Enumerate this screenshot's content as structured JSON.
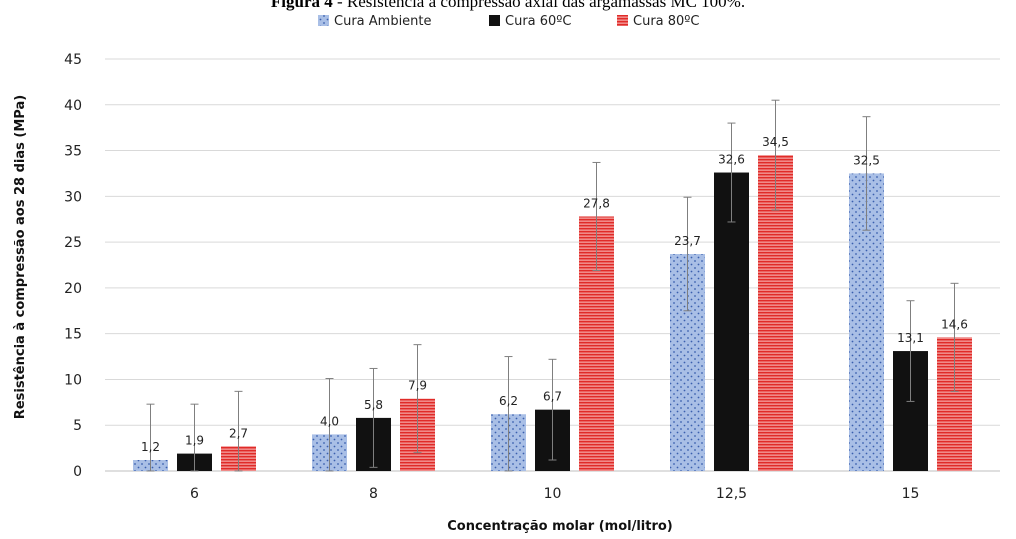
{
  "chart_data": {
    "type": "bar",
    "title_bold": "Figura 4",
    "title_rest": " - Resistência à compressão axial das argamassas MC 100%.",
    "xlabel": "Concentração molar (mol/litro)",
    "ylabel": "Resistência à compressão aos 28 dias (MPa)",
    "ylim": [
      0,
      45
    ],
    "yticks": [
      "0",
      "5",
      "10",
      "15",
      "20",
      "25",
      "30",
      "35",
      "40",
      "45"
    ],
    "categories": [
      "6",
      "8",
      "10",
      "12,5",
      "15"
    ],
    "legend_position": "top",
    "series": [
      {
        "name": "Cura Ambiente",
        "color": "#4a72c4",
        "pattern": "dots",
        "values": [
          1.2,
          4.0,
          6.2,
          23.7,
          32.5
        ],
        "labels": [
          "1,2",
          "4,0",
          "6,2",
          "23,7",
          "32,5"
        ],
        "errors": [
          6.1,
          6.1,
          6.3,
          6.2,
          6.2
        ]
      },
      {
        "name": "Cura 60ºC",
        "color": "#111111",
        "pattern": "solid",
        "values": [
          1.9,
          5.8,
          6.7,
          32.6,
          13.1
        ],
        "labels": [
          "1,9",
          "5,8",
          "6,7",
          "32,6",
          "13,1"
        ],
        "errors": [
          5.4,
          5.4,
          5.5,
          5.4,
          5.5
        ]
      },
      {
        "name": "Cura 80ºC",
        "color": "#e8322f",
        "pattern": "lines",
        "values": [
          2.7,
          7.9,
          27.8,
          34.5,
          14.6
        ],
        "labels": [
          "2,7",
          "7,9",
          "27,8",
          "34,5",
          "14,6"
        ],
        "errors": [
          6.0,
          5.9,
          5.9,
          6.0,
          5.9
        ]
      }
    ]
  }
}
